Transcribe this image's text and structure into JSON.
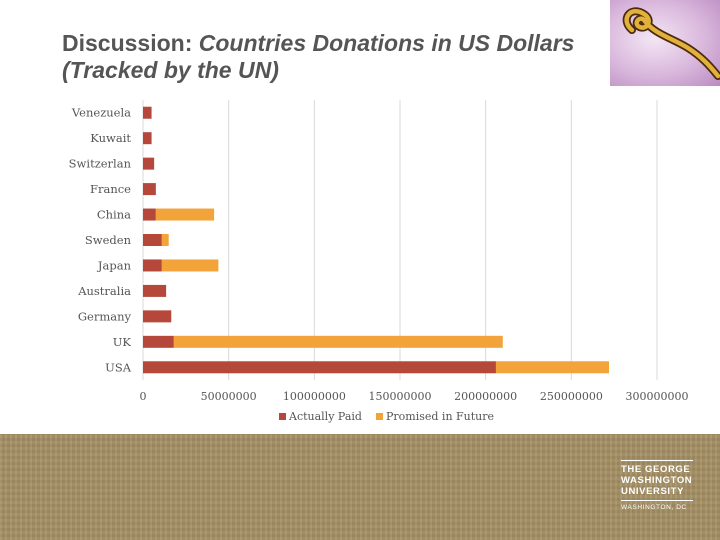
{
  "slide": {
    "title_plain": "Discussion: ",
    "title_italic_1": "Countries Donations in US Dollars",
    "title_italic_2": "(Tracked by the UN)"
  },
  "logo": {
    "line1": "THE GEORGE",
    "line2": "WASHINGTON",
    "line3": "UNIVERSITY",
    "location": "WASHINGTON, DC"
  },
  "chart_data": {
    "type": "bar",
    "orientation": "horizontal",
    "stacked": true,
    "categories": [
      "USA",
      "UK",
      "Germany",
      "Australia",
      "Japan",
      "Sweden",
      "China",
      "France",
      "Switzerlan",
      "Kuwait",
      "Venezuela"
    ],
    "series": [
      {
        "name": "Actually Paid",
        "color": "#b5473b",
        "values": [
          206000000,
          18000000,
          16500000,
          13500000,
          11000000,
          11000000,
          7500000,
          7500000,
          6500000,
          5000000,
          5000000
        ]
      },
      {
        "name": "Promised in Future",
        "color": "#f2a43a",
        "values": [
          66000000,
          192000000,
          0,
          0,
          33000000,
          4000000,
          34000000,
          0,
          0,
          0,
          0
        ]
      }
    ],
    "xlim": [
      0,
      300000000
    ],
    "xticks": [
      "0",
      "50000000",
      "100000000",
      "150000000",
      "200000000",
      "250000000",
      "300000000"
    ],
    "grid": true,
    "legend_position": "bottom"
  }
}
